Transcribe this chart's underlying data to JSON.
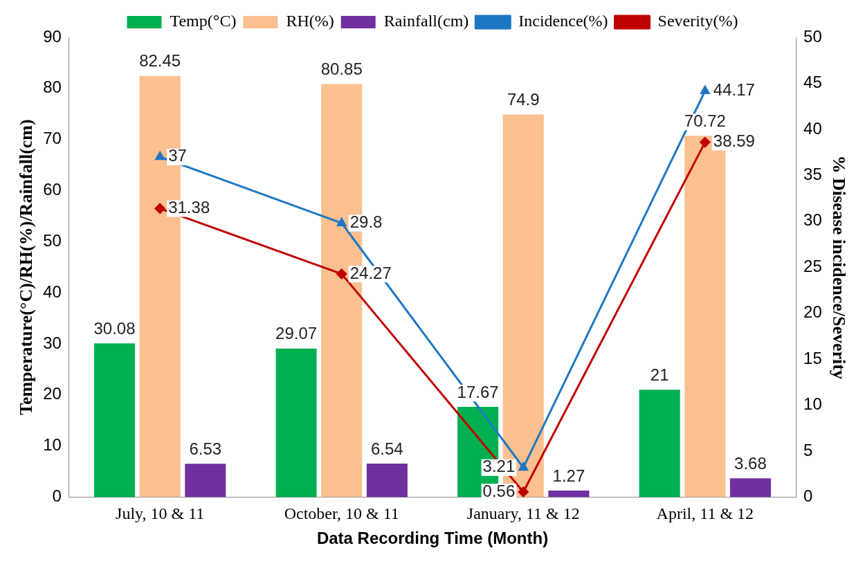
{
  "chart_data": {
    "type": "bar",
    "categories": [
      "July, 10 & 11",
      "October, 10 & 11",
      "January, 11 & 12",
      "April, 11 & 12"
    ],
    "xlabel": "Data Recording Time (Month)",
    "ylabel": "Temperature(°C)/RH(%)/Rainfall(cm)",
    "y2label": "% Disease incidence/Severity",
    "series": [
      {
        "name": "Temp(°C)",
        "color": "#00b050",
        "values": [
          30.08,
          29.07,
          17.67,
          21
        ]
      },
      {
        "name": "RH(%)",
        "color": "#fac090",
        "values": [
          82.45,
          80.85,
          74.9,
          70.72
        ]
      },
      {
        "name": "Rainfall(cm)",
        "color": "#7030a0",
        "values": [
          6.53,
          6.54,
          1.27,
          3.68
        ]
      },
      {
        "name": "Incidence(%)",
        "type": "line",
        "axis": "y2",
        "marker": "triangle",
        "color": "#1f77c4",
        "values": [
          37,
          29.8,
          3.21,
          44.17
        ]
      },
      {
        "name": "Severity(%)",
        "type": "line",
        "axis": "y2",
        "marker": "diamond",
        "color": "#c00000",
        "values": [
          31.38,
          24.27,
          0.56,
          38.59
        ]
      }
    ],
    "ylim": [
      0,
      90
    ],
    "yticks": [
      0,
      10,
      20,
      30,
      40,
      50,
      60,
      70,
      80,
      90
    ],
    "y2lim": [
      0,
      50
    ],
    "y2ticks": [
      0,
      5,
      10,
      15,
      20,
      25,
      30,
      35,
      40,
      45,
      50
    ],
    "legend": "top",
    "grid": false,
    "data_labels": true
  }
}
